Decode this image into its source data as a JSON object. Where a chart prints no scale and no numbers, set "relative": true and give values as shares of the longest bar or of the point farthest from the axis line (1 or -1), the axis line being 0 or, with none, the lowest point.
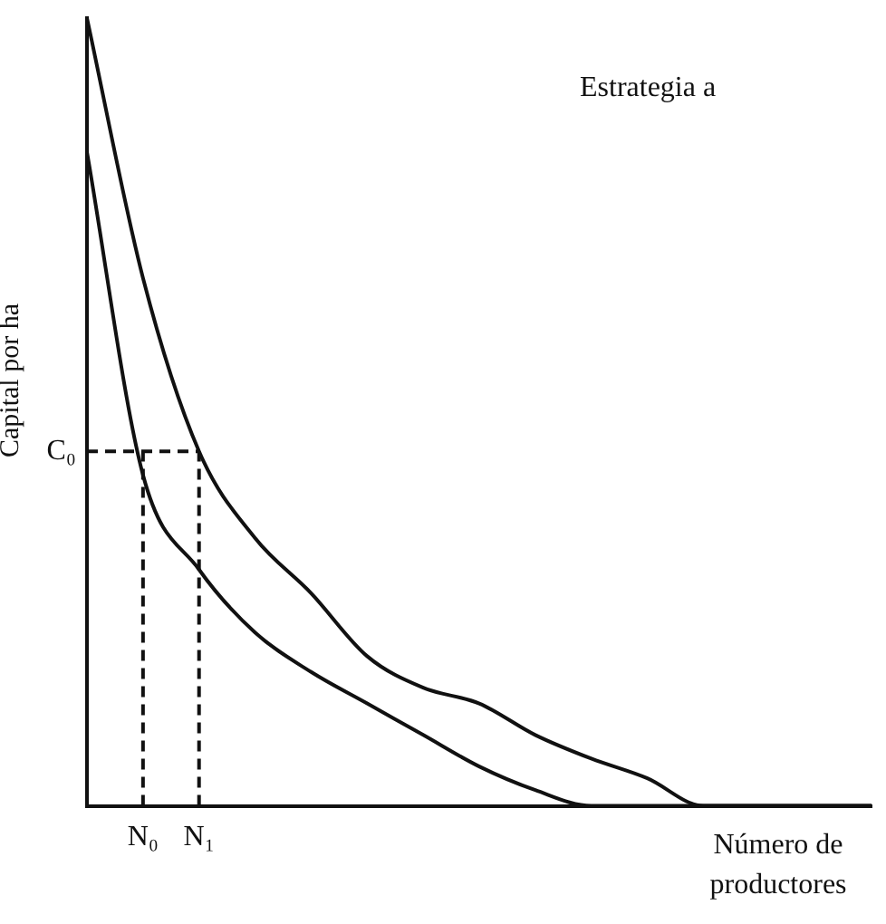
{
  "chart_data": {
    "type": "line",
    "relative": true,
    "title": "Estrategia a",
    "xlabel": "Número de productores",
    "ylabel": "Capital por ha",
    "categories": [
      null,
      "N₀",
      "N₁",
      null,
      null,
      null,
      null,
      null,
      null,
      null,
      null,
      null,
      null,
      null,
      null
    ],
    "series": [
      {
        "color": "#111111",
        "values": [
          1.0,
          0.67,
          0.45,
          0.34,
          0.27,
          0.19,
          0.15,
          0.13,
          0.09,
          0.06,
          0.035,
          0,
          0,
          0,
          0
        ]
      },
      {
        "color": "#111111",
        "values": [
          0.83,
          0.42,
          0.3,
          0.22,
          0.17,
          0.13,
          0.09,
          0.05,
          0.02,
          0,
          0,
          0,
          0,
          0,
          0
        ]
      }
    ],
    "ref_lines": [
      {
        "axis": "y",
        "value": 0.45,
        "label": "C₀",
        "line_style": "dashed",
        "color": "#111111"
      },
      {
        "axis": "x",
        "value": "N₀",
        "line_style": "dashed",
        "color": "#111111"
      },
      {
        "axis": "x",
        "value": "N₁",
        "line_style": "dashed",
        "color": "#111111"
      }
    ],
    "grid": false,
    "legend": false,
    "marker": "none",
    "line_style": "solid"
  }
}
